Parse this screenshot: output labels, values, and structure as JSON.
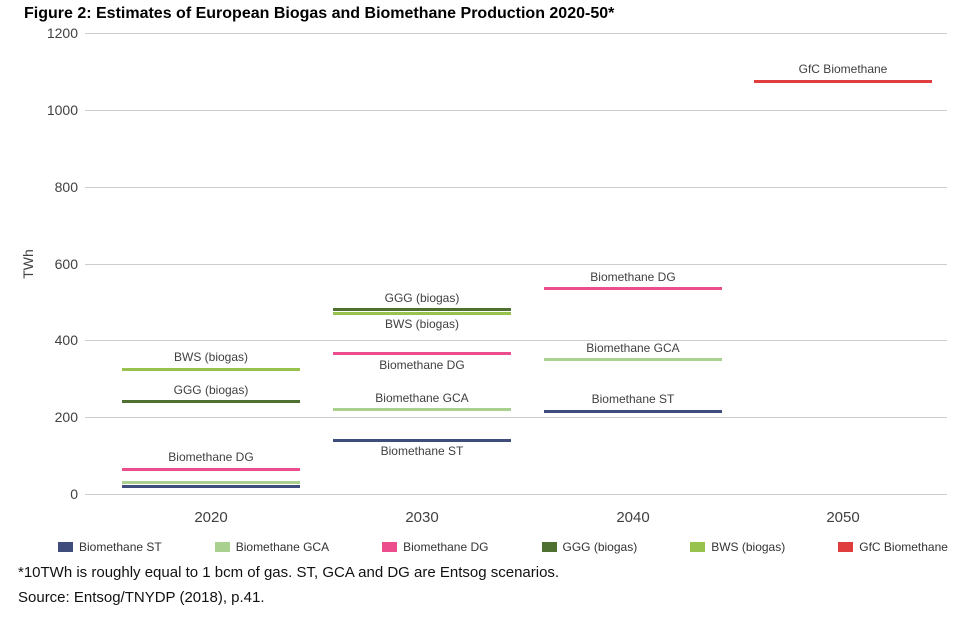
{
  "figure": {
    "title": "Figure 2: Estimates of European Biogas and Biomethane Production 2020-50*",
    "footnote": "*10TWh is roughly equal to 1 bcm of gas. ST, GCA and DG are Entsog scenarios.",
    "source": "Source: Entsog/TNYDP (2018), p.41."
  },
  "chart_data": {
    "type": "line",
    "title": "Figure 2: Estimates of European Biogas and Biomethane Production 2020-50*",
    "xlabel": "",
    "ylabel": "TWh",
    "ylim": [
      0,
      1200
    ],
    "yticks": [
      0,
      200,
      400,
      600,
      800,
      1000,
      1200
    ],
    "categories": [
      "2020",
      "2030",
      "2040",
      "2050"
    ],
    "grid": true,
    "legend_position": "bottom",
    "series": [
      {
        "name": "Biomethane ST",
        "color": "#3f4d7c",
        "values": [
          20,
          140,
          215,
          null
        ]
      },
      {
        "name": "Biomethane GCA",
        "color": "#a9d08e",
        "values": [
          30,
          220,
          350,
          null
        ]
      },
      {
        "name": "Biomethane DG",
        "color": "#ec4d8c",
        "values": [
          65,
          365,
          535,
          null
        ]
      },
      {
        "name": "GGG (biogas)",
        "color": "#4e7031",
        "values": [
          240,
          480,
          null,
          null
        ]
      },
      {
        "name": "BWS (biogas)",
        "color": "#97c24d",
        "values": [
          325,
          470,
          null,
          null
        ]
      },
      {
        "name": "GfC Biomethane",
        "color": "#e03e3e",
        "values": [
          null,
          null,
          null,
          1075
        ]
      }
    ],
    "segments": [
      {
        "year": "2020",
        "series": "BWS (biogas)",
        "value": 325,
        "label": "BWS (biogas)",
        "label_pos": "above"
      },
      {
        "year": "2020",
        "series": "GGG (biogas)",
        "value": 240,
        "label": "GGG (biogas)",
        "label_pos": "above"
      },
      {
        "year": "2020",
        "series": "Biomethane DG",
        "value": 65,
        "label": "Biomethane DG",
        "label_pos": "above"
      },
      {
        "year": "2020",
        "series": "Biomethane GCA",
        "value": 30,
        "label": null,
        "label_pos": null
      },
      {
        "year": "2020",
        "series": "Biomethane ST",
        "value": 20,
        "label": null,
        "label_pos": null
      },
      {
        "year": "2030",
        "series": "GGG (biogas)",
        "value": 480,
        "label": "GGG (biogas)",
        "label_pos": "above"
      },
      {
        "year": "2030",
        "series": "BWS (biogas)",
        "value": 470,
        "label": "BWS (biogas)",
        "label_pos": "below"
      },
      {
        "year": "2030",
        "series": "Biomethane DG",
        "value": 365,
        "label": "Biomethane DG",
        "label_pos": "below"
      },
      {
        "year": "2030",
        "series": "Biomethane GCA",
        "value": 220,
        "label": "Biomethane GCA",
        "label_pos": "above"
      },
      {
        "year": "2030",
        "series": "Biomethane ST",
        "value": 140,
        "label": "Biomethane ST",
        "label_pos": "below"
      },
      {
        "year": "2040",
        "series": "Biomethane DG",
        "value": 535,
        "label": "Biomethane DG",
        "label_pos": "above"
      },
      {
        "year": "2040",
        "series": "Biomethane GCA",
        "value": 350,
        "label": "Biomethane GCA",
        "label_pos": "above"
      },
      {
        "year": "2040",
        "series": "Biomethane ST",
        "value": 215,
        "label": "Biomethane ST",
        "label_pos": "above"
      },
      {
        "year": "2050",
        "series": "GfC Biomethane",
        "value": 1075,
        "label": "GfC Biomethane",
        "label_pos": "above"
      }
    ],
    "legend": [
      {
        "label": "Biomethane ST",
        "color": "#3f4d7c"
      },
      {
        "label": "Biomethane GCA",
        "color": "#a9d08e"
      },
      {
        "label": "Biomethane DG",
        "color": "#ec4d8c"
      },
      {
        "label": "GGG (biogas)",
        "color": "#4e7031"
      },
      {
        "label": "BWS (biogas)",
        "color": "#97c24d"
      },
      {
        "label": "GfC Biomethane",
        "color": "#e03e3e"
      }
    ]
  }
}
